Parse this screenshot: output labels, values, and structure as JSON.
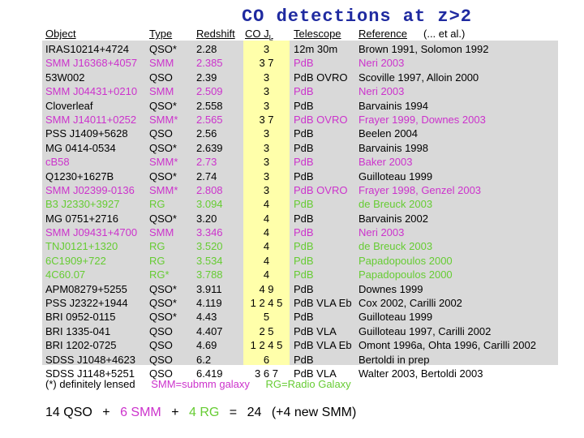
{
  "title": "CO  detections  at  z>2",
  "headers": {
    "object": "Object",
    "type": "Type",
    "redshift": "Redshift",
    "co": "CO J",
    "co_sub": "L",
    "telescope": "Telescope",
    "reference": "Reference",
    "etal": "(... et al.)"
  },
  "rows": [
    {
      "object": "IRAS10214+4724",
      "type": "QSO*",
      "z": "2.28",
      "co": "3",
      "telescope": "12m 30m",
      "reference": "Brown 1991, Solomon 1992",
      "color": "black"
    },
    {
      "object": "SMM J16368+4057",
      "type": "SMM",
      "z": "2.385",
      "co": "3  7",
      "telescope": "PdB",
      "reference": "Neri 2003",
      "color": "magenta"
    },
    {
      "object": "53W002",
      "type": "QSO",
      "z": "2.39",
      "co": "3",
      "telescope": "PdB OVRO",
      "reference": "Scoville 1997, Alloin 2000",
      "color": "black"
    },
    {
      "object": "SMM J04431+0210",
      "type": "SMM",
      "z": "2.509",
      "co": "3",
      "telescope": "PdB",
      "reference": "Neri 2003",
      "color": "magenta"
    },
    {
      "object": "Cloverleaf",
      "type": "QSO*",
      "z": "2.558",
      "co": "3",
      "telescope": "PdB",
      "reference": "Barvainis 1994",
      "color": "black"
    },
    {
      "object": "SMM J14011+0252",
      "type": "SMM*",
      "z": "2.565",
      "co": "3  7",
      "telescope": "PdB OVRO",
      "reference": "Frayer 1999, Downes 2003",
      "color": "magenta"
    },
    {
      "object": "PSS J1409+5628",
      "type": "QSO",
      "z": "2.56",
      "co": "3",
      "telescope": "PdB",
      "reference": "Beelen 2004",
      "color": "black"
    },
    {
      "object": "MG 0414-0534",
      "type": "QSO*",
      "z": "2.639",
      "co": "3",
      "telescope": "PdB",
      "reference": "Barvainis 1998",
      "color": "black"
    },
    {
      "object": "cB58",
      "type": "SMM*",
      "z": "2.73",
      "co": "3",
      "telescope": "PdB",
      "reference": "Baker 2003",
      "color": "magenta"
    },
    {
      "object": "Q1230+1627B",
      "type": "QSO*",
      "z": "2.74",
      "co": "3",
      "telescope": "PdB",
      "reference": "Guilloteau 1999",
      "color": "black"
    },
    {
      "object": "SMM J02399-0136",
      "type": "SMM*",
      "z": "2.808",
      "co": "3",
      "telescope": "PdB OVRO",
      "reference": "Frayer 1998, Genzel 2003",
      "color": "magenta"
    },
    {
      "object": "B3 J2330+3927",
      "type": "RG",
      "z": "3.094",
      "co": "4",
      "telescope": "PdB",
      "reference": "de Breuck 2003",
      "color": "green"
    },
    {
      "object": "MG 0751+2716",
      "type": "QSO*",
      "z": "3.20",
      "co": "4",
      "telescope": "PdB",
      "reference": "Barvainis 2002",
      "color": "black"
    },
    {
      "object": "SMM J09431+4700",
      "type": "SMM",
      "z": "3.346",
      "co": "4",
      "telescope": "PdB",
      "reference": "Neri 2003",
      "color": "magenta"
    },
    {
      "object": "TNJ0121+1320",
      "type": "RG",
      "z": "3.520",
      "co": "4",
      "telescope": "PdB",
      "reference": "de Breuck 2003",
      "color": "green"
    },
    {
      "object": "6C1909+722",
      "type": "RG",
      "z": "3.534",
      "co": "4",
      "telescope": "PdB",
      "reference": "Papadopoulos 2000",
      "color": "green"
    },
    {
      "object": "4C60.07",
      "type": "RG*",
      "z": "3.788",
      "co": "4",
      "telescope": "PdB",
      "reference": "Papadopoulos 2000",
      "color": "green"
    },
    {
      "object": "APM08279+5255",
      "type": "QSO*",
      "z": "3.911",
      "co": "4  9",
      "telescope": "PdB",
      "reference": "Downes 1999",
      "color": "black"
    },
    {
      "object": "PSS J2322+1944",
      "type": "QSO*",
      "z": "4.119",
      "co": "1 2 4 5",
      "telescope": "PdB VLA Eb",
      "reference": "Cox 2002, Carilli 2002",
      "color": "black"
    },
    {
      "object": "BRI 0952-0115",
      "type": "QSO*",
      "z": "4.43",
      "co": "5",
      "telescope": "PdB",
      "reference": "Guilloteau 1999",
      "color": "black"
    },
    {
      "object": "BRI 1335-041",
      "type": "QSO",
      "z": "4.407",
      "co": "2  5",
      "telescope": "PdB VLA",
      "reference": "Guilloteau 1997, Carilli 2002",
      "color": "black"
    },
    {
      "object": "BRI 1202-0725",
      "type": "QSO",
      "z": "4.69",
      "co": "1 2 4 5",
      "telescope": "PdB VLA Eb",
      "reference": "Omont 1996a, Ohta 1996, Carilli 2002",
      "color": "black"
    },
    {
      "object": "SDSS J1048+4623",
      "type": "QSO",
      "z": "6.2",
      "co": "6",
      "telescope": "PdB",
      "reference": "Bertoldi in prep",
      "color": "black"
    },
    {
      "object": "SDSS J1148+5251",
      "type": "QSO",
      "z": "6.419",
      "co": "3  6 7",
      "telescope": "PdB VLA",
      "reference": "Walter 2003, Bertoldi 2003",
      "color": "black"
    }
  ],
  "footnote": {
    "lensed": "(*) definitely lensed",
    "smm": "SMM=submm galaxy",
    "rg": "RG=Radio Galaxy"
  },
  "summary": {
    "qso": "14 QSO",
    "plus1": "+",
    "smm": "6 SMM",
    "plus2": "+",
    "rg": "4 RG",
    "eq": "=",
    "total": "24",
    "extra": "(+4 new SMM)"
  },
  "colors": {
    "title": "#1f2aa0",
    "magenta": "#cc33cc",
    "green": "#66cc33",
    "table_bg": "#d9d9d9",
    "co_highlight": "#ffffaa"
  }
}
